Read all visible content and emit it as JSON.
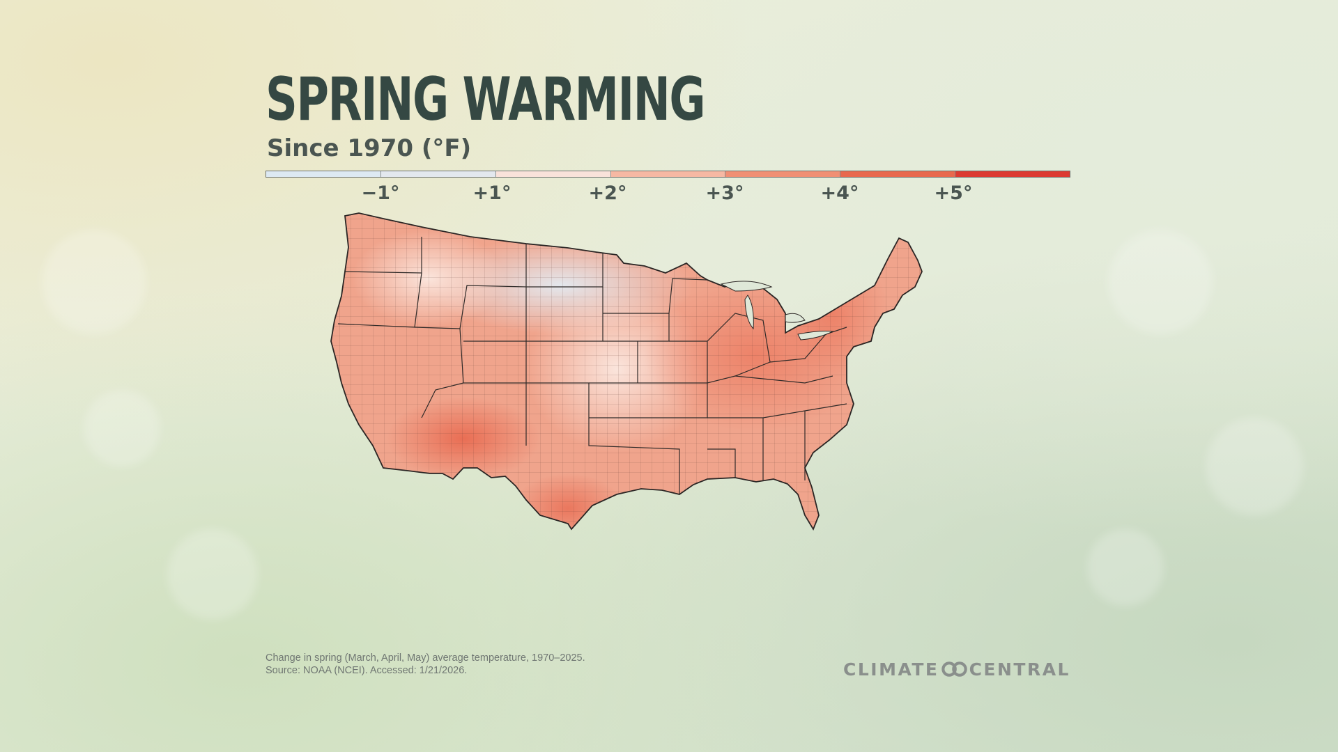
{
  "title": "SPRING WARMING",
  "subtitle": "Since 1970 (°F)",
  "legend": {
    "colors": [
      "#dde9f2",
      "#e3e8ee",
      "#f9e2da",
      "#f6b8a3",
      "#f08f74",
      "#e8684e",
      "#dc3a32"
    ],
    "tick_labels": [
      "−1°",
      "+1°",
      "+2°",
      "+3°",
      "+4°",
      "+5°"
    ]
  },
  "footnote": {
    "line1": "Change in spring (March, April, May) average temperature, 1970–2025.",
    "line2": "Source: NOAA (NCEI). Accessed: 1/21/2026."
  },
  "brand": {
    "left": "CLIMATE",
    "right": "CENTRAL",
    "logo_icon": "linked-rings-icon"
  },
  "map": {
    "subject": "Contiguous United States, county-level spring temperature change",
    "dominant_color": "#f0a48c",
    "coolest_region_color": "#e3e8ee",
    "warmest_region_color": "#e8684e"
  }
}
